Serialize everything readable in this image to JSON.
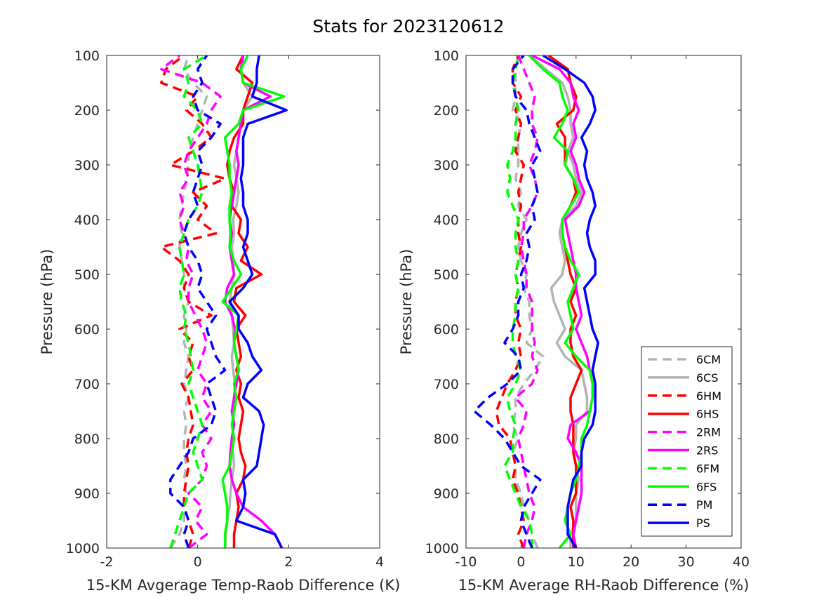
{
  "title": "Stats for 2023120612",
  "colors": {
    "6C": "#b3b3b3",
    "6H": "#ff0000",
    "2R": "#ff00ff",
    "6F": "#00ff00",
    "P": "#0000ff"
  },
  "chart_data": [
    {
      "type": "line",
      "xlabel": "15-KM Avgerage Temp-Raob Difference (K)",
      "ylabel": "Pressure (hPa)",
      "xlim": [
        -2,
        4
      ],
      "ylim": [
        100,
        1000
      ],
      "y_reversed": true,
      "xticks": [
        -2,
        0,
        2,
        4
      ],
      "yticks": [
        100,
        200,
        300,
        400,
        500,
        600,
        700,
        800,
        900,
        1000
      ],
      "grid": false,
      "legend": false,
      "pressure": [
        1000,
        975,
        950,
        925,
        900,
        875,
        850,
        825,
        800,
        775,
        750,
        725,
        700,
        675,
        650,
        625,
        600,
        575,
        550,
        525,
        500,
        475,
        450,
        425,
        400,
        375,
        350,
        325,
        300,
        275,
        250,
        225,
        200,
        175,
        150,
        125,
        100
      ],
      "series": [
        {
          "name": "6CM",
          "style": "dashed",
          "values": [
            -0.6,
            -0.4,
            -0.3,
            -0.3,
            -0.25,
            -0.3,
            -0.25,
            -0.3,
            -0.3,
            -0.25,
            -0.3,
            -0.2,
            -0.3,
            -0.25,
            -0.2,
            -0.3,
            -0.25,
            -0.3,
            -0.2,
            -0.3,
            -0.3,
            -0.35,
            -0.4,
            -0.35,
            -0.4,
            -0.35,
            -0.3,
            -0.25,
            -0.2,
            -0.2,
            -0.1,
            0.0,
            0.1,
            0.2,
            -0.1,
            -0.3,
            -0.2
          ]
        },
        {
          "name": "6CS",
          "style": "solid",
          "values": [
            0.6,
            0.62,
            0.65,
            0.7,
            0.72,
            0.75,
            0.8,
            0.78,
            0.75,
            0.8,
            0.78,
            0.8,
            0.82,
            0.78,
            0.75,
            0.8,
            0.78,
            0.75,
            0.7,
            0.75,
            0.8,
            0.78,
            0.75,
            0.8,
            0.78,
            0.85,
            0.9,
            0.85,
            0.8,
            0.85,
            0.9,
            0.95,
            1.0,
            1.2,
            1.0,
            0.95,
            1.0
          ]
        },
        {
          "name": "6HM",
          "style": "dashed",
          "values": [
            -0.2,
            -0.1,
            -0.2,
            -0.3,
            -0.3,
            -0.25,
            -0.2,
            -0.25,
            -0.2,
            -0.1,
            -0.15,
            -0.2,
            -0.35,
            -0.1,
            -0.2,
            -0.1,
            -0.4,
            0.3,
            -0.2,
            -0.3,
            -0.2,
            -0.4,
            -0.8,
            0.4,
            0.0,
            0.2,
            -0.1,
            0.6,
            -0.6,
            -0.1,
            0.3,
            0.1,
            -0.25,
            0.0,
            -0.8,
            -0.7,
            -0.3
          ]
        },
        {
          "name": "6HS",
          "style": "solid",
          "values": [
            0.8,
            0.8,
            0.85,
            0.9,
            0.85,
            1.0,
            1.05,
            0.95,
            0.9,
            0.95,
            1.0,
            0.9,
            0.95,
            0.85,
            0.95,
            0.9,
            0.85,
            1.05,
            0.8,
            0.85,
            1.4,
            0.95,
            1.1,
            0.9,
            0.95,
            0.75,
            0.8,
            0.7,
            0.65,
            0.7,
            0.8,
            1.0,
            1.0,
            1.1,
            1.2,
            0.85,
            1.0
          ]
        },
        {
          "name": "2RM",
          "style": "dashed",
          "values": [
            -0.2,
            0.2,
            -0.05,
            0.1,
            -0.2,
            0.1,
            0.2,
            0.1,
            0.3,
            0.1,
            0.3,
            0.1,
            0.2,
            0.0,
            0.1,
            0.2,
            0.1,
            -0.05,
            -0.2,
            -0.2,
            -0.1,
            -0.25,
            -0.2,
            -0.3,
            -0.4,
            -0.3,
            -0.4,
            -0.2,
            -0.3,
            -0.2,
            0.0,
            0.2,
            0.3,
            0.5,
            0.1,
            -0.8,
            -0.4
          ]
        },
        {
          "name": "2RS",
          "style": "solid",
          "values": [
            1.85,
            1.7,
            1.4,
            1.0,
            0.85,
            0.75,
            0.7,
            0.72,
            0.75,
            0.8,
            0.75,
            0.8,
            0.85,
            0.9,
            0.85,
            0.8,
            0.82,
            0.75,
            0.6,
            0.65,
            0.8,
            0.75,
            0.7,
            0.75,
            0.7,
            0.75,
            0.8,
            0.85,
            0.9,
            0.85,
            0.9,
            0.95,
            1.0,
            1.6,
            1.0,
            0.95,
            1.0
          ]
        },
        {
          "name": "6FM",
          "style": "dashed",
          "values": [
            -0.6,
            -0.5,
            -0.4,
            -0.3,
            -0.2,
            0.1,
            0.0,
            -0.1,
            0.0,
            0.1,
            0.0,
            -0.1,
            -0.2,
            -0.1,
            -0.15,
            -0.2,
            -0.3,
            -0.25,
            -0.35,
            -0.4,
            -0.3,
            -0.35,
            -0.4,
            -0.3,
            -0.2,
            0.0,
            0.1,
            0.05,
            0.0,
            -0.1,
            -0.2,
            0.1,
            0.0,
            -0.3,
            -0.2,
            -0.3,
            0.2
          ]
        },
        {
          "name": "6FS",
          "style": "solid",
          "values": [
            0.6,
            0.6,
            0.65,
            0.65,
            0.6,
            0.55,
            0.7,
            0.75,
            0.8,
            0.75,
            0.8,
            0.85,
            0.8,
            0.9,
            0.85,
            0.8,
            0.85,
            0.9,
            0.55,
            0.75,
            0.95,
            0.8,
            0.7,
            0.72,
            0.7,
            0.7,
            0.75,
            0.7,
            0.7,
            0.65,
            0.6,
            0.9,
            1.0,
            1.9,
            1.0,
            0.95,
            1.1
          ]
        },
        {
          "name": "PM",
          "style": "dashed",
          "values": [
            -0.2,
            -0.3,
            -0.2,
            -0.3,
            -0.6,
            -0.6,
            -0.4,
            -0.2,
            -0.1,
            0.3,
            0.4,
            0.3,
            0.2,
            0.6,
            0.4,
            0.3,
            0.2,
            0.4,
            0.2,
            0.0,
            0.1,
            0.0,
            -0.2,
            -0.3,
            -0.2,
            0.0,
            -0.1,
            0.0,
            0.1,
            0.0,
            0.3,
            0.5,
            0.0,
            -0.1,
            0.1,
            0.0,
            0.2
          ]
        },
        {
          "name": "PS",
          "style": "solid",
          "values": [
            1.85,
            1.7,
            0.85,
            1.0,
            1.05,
            1.0,
            1.3,
            1.35,
            1.4,
            1.45,
            1.35,
            1.0,
            1.1,
            1.4,
            1.2,
            1.1,
            0.9,
            0.9,
            0.7,
            1.0,
            1.2,
            1.1,
            1.0,
            1.1,
            1.1,
            1.0,
            1.0,
            0.95,
            1.0,
            1.0,
            1.0,
            1.1,
            1.95,
            1.2,
            1.3,
            1.3,
            1.35
          ]
        }
      ]
    },
    {
      "type": "line",
      "xlabel": "15-KM Average RH-Raob Difference (%)",
      "ylabel": "Pressure (hPa)",
      "xlim": [
        -10,
        40
      ],
      "ylim": [
        100,
        1000
      ],
      "y_reversed": true,
      "xticks": [
        -10,
        0,
        10,
        20,
        30,
        40
      ],
      "yticks": [
        100,
        200,
        300,
        400,
        500,
        600,
        700,
        800,
        900,
        1000
      ],
      "grid": false,
      "legend": true,
      "legend_position": "bottom-right",
      "pressure": [
        1000,
        975,
        950,
        925,
        900,
        875,
        850,
        825,
        800,
        775,
        750,
        725,
        700,
        675,
        650,
        625,
        600,
        575,
        550,
        525,
        500,
        475,
        450,
        425,
        400,
        375,
        350,
        325,
        300,
        275,
        250,
        225,
        200,
        175,
        150,
        125,
        100
      ],
      "series": [
        {
          "name": "6CM",
          "style": "dashed",
          "values": [
            3.0,
            2.0,
            1.5,
            0.5,
            0.0,
            -1.0,
            -1.0,
            -1.5,
            -0.5,
            -1.5,
            -1.0,
            -1.0,
            0.5,
            2.5,
            4.0,
            1.0,
            2.0,
            1.5,
            1.5,
            0.5,
            1.0,
            0.0,
            -0.5,
            0.0,
            1.0,
            -0.5,
            0.0,
            -1.0,
            -0.5,
            -0.5,
            -0.5,
            0.0,
            -1.5,
            -1.0,
            -1.0,
            -1.0,
            -0.5
          ]
        },
        {
          "name": "6CS",
          "style": "solid",
          "values": [
            9.0,
            9.0,
            10.0,
            10.0,
            10.0,
            10.5,
            10.0,
            9.5,
            10.0,
            10.0,
            12.0,
            12.0,
            11.5,
            11.0,
            8.0,
            6.5,
            8.0,
            7.0,
            6.0,
            5.5,
            7.5,
            8.0,
            7.5,
            7.0,
            7.5,
            10.0,
            11.0,
            10.0,
            9.5,
            8.5,
            9.5,
            9.0,
            9.0,
            8.5,
            7.5,
            4.5,
            1.5
          ]
        },
        {
          "name": "6HM",
          "style": "dashed",
          "values": [
            0.5,
            -0.5,
            0.5,
            0.0,
            -0.5,
            -1.5,
            -1.0,
            -1.5,
            -2.0,
            -4.0,
            -4.5,
            -3.5,
            -2.5,
            -1.0,
            0.0,
            -0.5,
            0.0,
            -1.0,
            -1.0,
            -0.5,
            -1.0,
            -0.5,
            0.0,
            -0.5,
            -0.5,
            0.0,
            -0.5,
            0.0,
            0.5,
            -1.0,
            -0.5,
            0.0,
            -1.0,
            0.0,
            -1.5,
            -1.5,
            -0.5
          ]
        },
        {
          "name": "6HS",
          "style": "solid",
          "values": [
            9.5,
            9.5,
            9.5,
            9.0,
            10.0,
            10.0,
            10.0,
            9.5,
            9.5,
            9.5,
            9.0,
            9.0,
            10.0,
            11.0,
            9.5,
            9.0,
            9.0,
            10.0,
            9.0,
            10.0,
            9.0,
            8.5,
            8.0,
            7.5,
            7.5,
            9.0,
            10.0,
            9.5,
            8.0,
            8.0,
            8.0,
            6.5,
            9.5,
            10.0,
            9.0,
            8.5,
            5.0
          ]
        },
        {
          "name": "2RM",
          "style": "dashed",
          "values": [
            0.5,
            1.0,
            2.0,
            2.5,
            1.5,
            1.0,
            0.5,
            0.0,
            -0.5,
            0.5,
            1.0,
            -1.0,
            2.0,
            3.0,
            2.0,
            2.5,
            2.0,
            2.0,
            2.0,
            1.0,
            1.0,
            0.5,
            0.0,
            0.5,
            0.5,
            2.0,
            3.0,
            2.5,
            1.5,
            2.5,
            3.0,
            2.0,
            2.0,
            2.5,
            1.5,
            0.5,
            -0.5
          ]
        },
        {
          "name": "2RS",
          "style": "solid",
          "values": [
            10.0,
            9.5,
            10.0,
            10.5,
            11.0,
            11.0,
            11.0,
            10.0,
            8.5,
            9.0,
            12.5,
            13.0,
            13.0,
            12.5,
            12.0,
            11.0,
            10.0,
            11.0,
            10.5,
            10.0,
            10.0,
            9.5,
            9.0,
            8.5,
            8.0,
            10.5,
            11.5,
            10.5,
            10.0,
            9.0,
            10.0,
            9.5,
            10.5,
            9.5,
            9.0,
            7.0,
            2.0
          ]
        },
        {
          "name": "6FM",
          "style": "dashed",
          "values": [
            2.0,
            2.0,
            1.5,
            0.0,
            -1.0,
            -2.0,
            -3.0,
            -1.5,
            -1.5,
            -1.0,
            -2.0,
            -2.5,
            -1.0,
            0.0,
            -1.0,
            -1.5,
            -1.5,
            -1.0,
            -1.0,
            -0.5,
            -1.0,
            -0.5,
            -1.0,
            -1.0,
            -0.5,
            -1.5,
            -2.5,
            -2.0,
            -2.5,
            -1.5,
            -1.0,
            -1.0,
            -0.5,
            -1.0,
            -1.5,
            -1.0,
            -0.5
          ]
        },
        {
          "name": "6FS",
          "style": "solid",
          "values": [
            7.0,
            9.0,
            8.0,
            8.5,
            9.0,
            10.0,
            10.5,
            11.0,
            11.0,
            12.0,
            12.5,
            13.0,
            13.0,
            12.5,
            10.0,
            8.0,
            9.5,
            9.0,
            8.5,
            9.5,
            10.5,
            9.0,
            8.0,
            7.5,
            7.5,
            9.0,
            10.5,
            9.5,
            8.0,
            8.5,
            6.0,
            7.5,
            8.5,
            7.5,
            7.0,
            4.0,
            1.5
          ]
        },
        {
          "name": "PM",
          "style": "dashed",
          "values": [
            2.0,
            1.0,
            0.0,
            0.5,
            2.0,
            3.5,
            0.0,
            -1.5,
            -3.0,
            -5.5,
            -8.5,
            -6.0,
            -2.5,
            0.0,
            -0.5,
            -3.0,
            -1.5,
            -0.5,
            -0.5,
            0.5,
            0.0,
            1.0,
            1.5,
            1.0,
            2.5,
            2.0,
            3.0,
            2.5,
            2.0,
            3.5,
            2.5,
            1.5,
            1.0,
            -1.0,
            -1.5,
            -1.5,
            0.5
          ]
        },
        {
          "name": "PS",
          "style": "solid",
          "values": [
            10.0,
            8.5,
            8.5,
            8.5,
            9.0,
            9.5,
            11.0,
            11.0,
            11.5,
            13.0,
            13.5,
            13.5,
            13.5,
            13.0,
            13.5,
            14.0,
            13.0,
            12.5,
            12.0,
            11.5,
            13.5,
            13.5,
            12.5,
            12.0,
            12.5,
            13.5,
            13.0,
            12.0,
            11.5,
            12.0,
            11.0,
            12.5,
            13.5,
            13.0,
            11.5,
            8.0,
            4.0
          ]
        }
      ]
    }
  ],
  "legend_entries": [
    "6CM",
    "6CS",
    "6HM",
    "6HS",
    "2RM",
    "2RS",
    "6FM",
    "6FS",
    "PM",
    "PS"
  ]
}
